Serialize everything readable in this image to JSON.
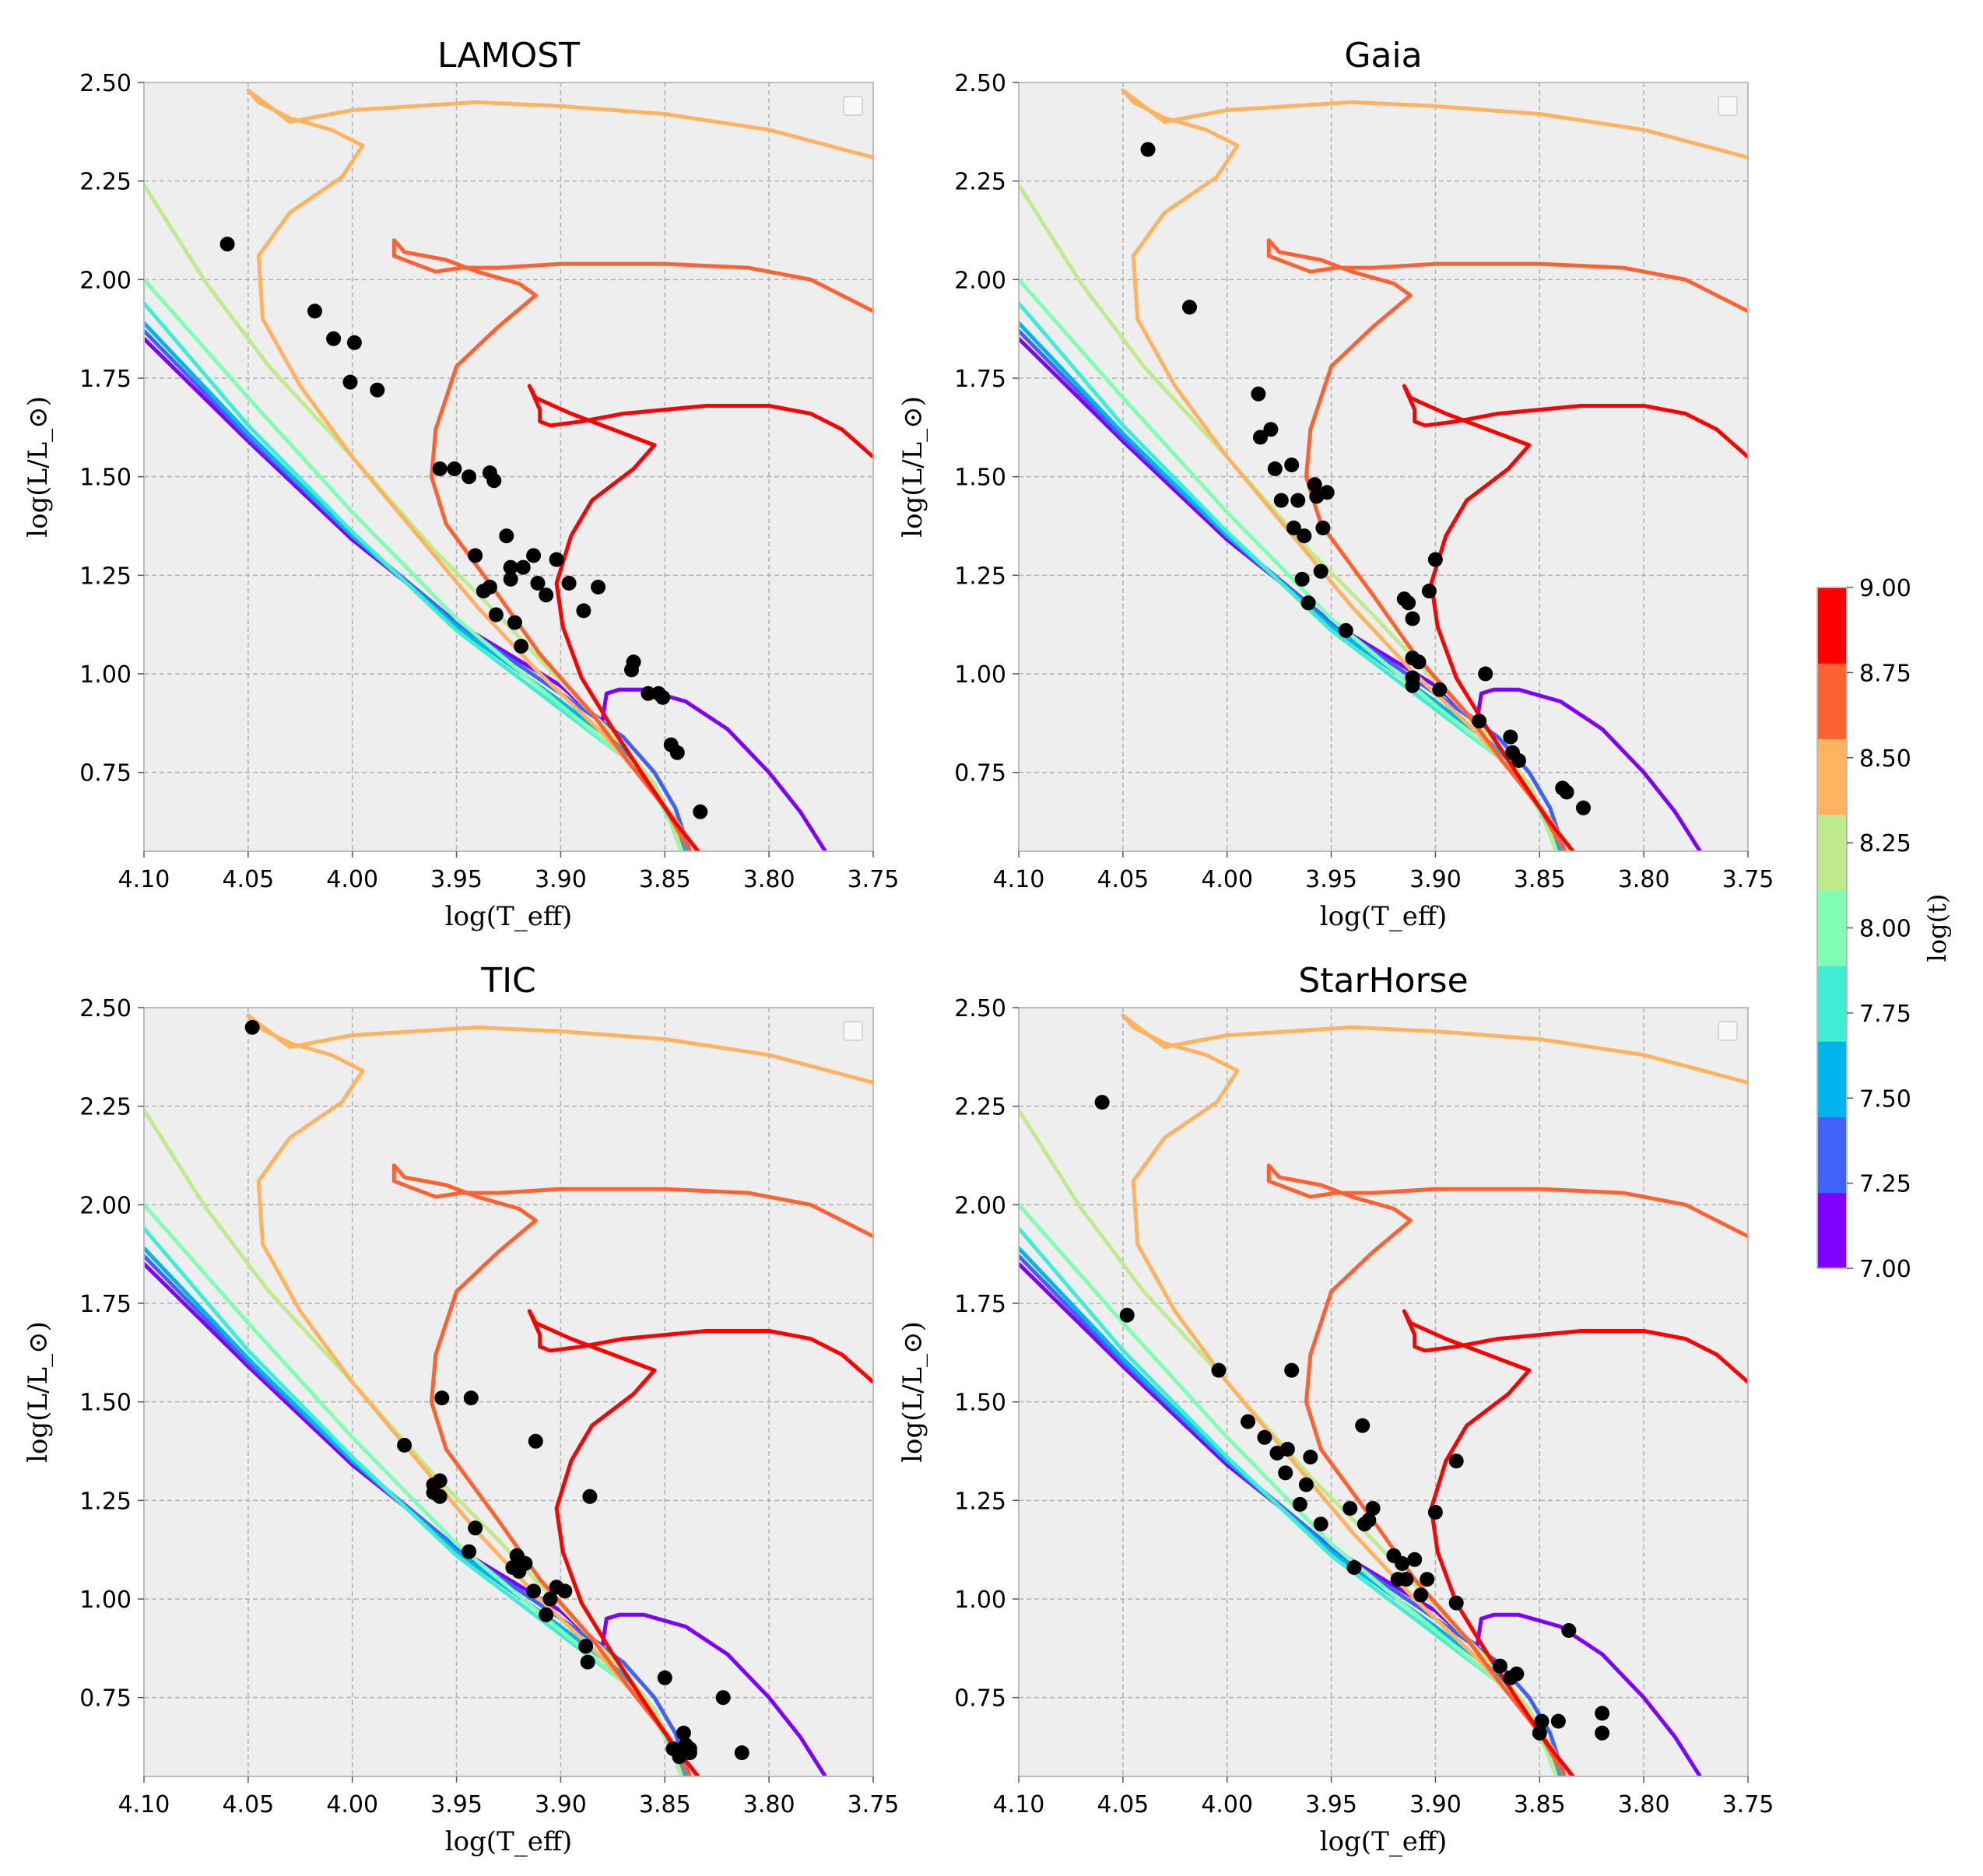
{
  "chart_data": {
    "type": "scatter",
    "description_axes": {
      "xlabel": "log(T_eff)",
      "ylabel": "log(L/L_⊙)",
      "xlim": [
        4.1,
        3.75
      ],
      "ylim": [
        0.55,
        2.5
      ],
      "xticks": [
        "4.10",
        "4.05",
        "4.00",
        "3.95",
        "3.90",
        "3.85",
        "3.80",
        "3.75"
      ],
      "yticks": [
        "0.75",
        "1.00",
        "1.25",
        "1.50",
        "1.75",
        "2.00",
        "2.25",
        "2.50"
      ],
      "grid": true
    },
    "colorbar": {
      "label": "log(t)",
      "ticks": [
        "7.00",
        "7.25",
        "7.50",
        "7.75",
        "8.00",
        "8.25",
        "8.50",
        "8.75",
        "9.00"
      ],
      "colors": [
        "#8000ff",
        "#4062fa",
        "#00b5eb",
        "#40ecd4",
        "#80ffb4",
        "#c0eb8d",
        "#ffb360",
        "#ff6230",
        "#ff0000"
      ]
    },
    "isochrones": [
      {
        "logt": 7.0,
        "color": "#8000ff",
        "points": [
          [
            4.1,
            1.85
          ],
          [
            4.05,
            1.59
          ],
          [
            4.0,
            1.34
          ],
          [
            3.95,
            1.13
          ],
          [
            3.9,
            0.97
          ],
          [
            3.885,
            0.9
          ],
          [
            3.88,
            0.88
          ],
          [
            3.878,
            0.95
          ],
          [
            3.872,
            0.96
          ],
          [
            3.86,
            0.96
          ],
          [
            3.84,
            0.93
          ],
          [
            3.82,
            0.86
          ],
          [
            3.8,
            0.75
          ],
          [
            3.785,
            0.65
          ],
          [
            3.773,
            0.55
          ]
        ]
      },
      {
        "logt": 7.25,
        "color": "#4062fa",
        "points": [
          [
            4.1,
            1.87
          ],
          [
            4.05,
            1.6
          ],
          [
            4.0,
            1.35
          ],
          [
            3.95,
            1.13
          ],
          [
            3.9,
            0.95
          ],
          [
            3.87,
            0.84
          ],
          [
            3.855,
            0.75
          ],
          [
            3.845,
            0.66
          ],
          [
            3.838,
            0.55
          ]
        ]
      },
      {
        "logt": 7.5,
        "color": "#00b5eb",
        "points": [
          [
            4.1,
            1.89
          ],
          [
            4.05,
            1.61
          ],
          [
            4.0,
            1.35
          ],
          [
            3.95,
            1.12
          ],
          [
            3.9,
            0.93
          ],
          [
            3.87,
            0.81
          ],
          [
            3.855,
            0.72
          ],
          [
            3.847,
            0.63
          ],
          [
            3.84,
            0.55
          ]
        ]
      },
      {
        "logt": 7.75,
        "color": "#40ecd4",
        "points": [
          [
            4.1,
            1.94
          ],
          [
            4.05,
            1.63
          ],
          [
            4.0,
            1.36
          ],
          [
            3.95,
            1.11
          ],
          [
            3.9,
            0.91
          ],
          [
            3.87,
            0.79
          ],
          [
            3.855,
            0.7
          ],
          [
            3.847,
            0.62
          ],
          [
            3.842,
            0.55
          ]
        ]
      },
      {
        "logt": 8.0,
        "color": "#80ffb4",
        "points": [
          [
            4.1,
            2.0
          ],
          [
            4.05,
            1.7
          ],
          [
            4.0,
            1.41
          ],
          [
            3.95,
            1.14
          ],
          [
            3.9,
            0.92
          ],
          [
            3.87,
            0.79
          ],
          [
            3.855,
            0.7
          ],
          [
            3.847,
            0.62
          ],
          [
            3.842,
            0.55
          ]
        ]
      },
      {
        "logt": 8.25,
        "color": "#c0eb8d",
        "points": [
          [
            4.1,
            2.24
          ],
          [
            4.07,
            1.99
          ],
          [
            4.04,
            1.78
          ],
          [
            4.0,
            1.55
          ],
          [
            3.96,
            1.31
          ],
          [
            3.93,
            1.15
          ],
          [
            3.9,
            0.98
          ],
          [
            3.87,
            0.82
          ],
          [
            3.855,
            0.72
          ],
          [
            3.847,
            0.63
          ],
          [
            3.842,
            0.55
          ]
        ]
      },
      {
        "logt": 8.5,
        "color": "#ffb360",
        "points": [
          [
            3.75,
            2.31
          ],
          [
            3.8,
            2.38
          ],
          [
            3.85,
            2.42
          ],
          [
            3.9,
            2.44
          ],
          [
            3.94,
            2.45
          ],
          [
            3.97,
            2.44
          ],
          [
            4.0,
            2.43
          ],
          [
            4.02,
            2.41
          ],
          [
            4.03,
            2.4
          ],
          [
            4.05,
            2.48
          ],
          [
            4.045,
            2.45
          ],
          [
            4.03,
            2.41
          ],
          [
            4.01,
            2.38
          ],
          [
            3.995,
            2.34
          ],
          [
            4.005,
            2.26
          ],
          [
            4.03,
            2.17
          ],
          [
            4.045,
            2.06
          ],
          [
            4.043,
            1.9
          ],
          [
            4.025,
            1.73
          ],
          [
            4.0,
            1.55
          ],
          [
            3.97,
            1.36
          ],
          [
            3.94,
            1.17
          ],
          [
            3.91,
            1.0
          ],
          [
            3.88,
            0.85
          ],
          [
            3.86,
            0.73
          ],
          [
            3.845,
            0.63
          ],
          [
            3.835,
            0.55
          ]
        ]
      },
      {
        "logt": 8.75,
        "color": "#ff6230",
        "points": [
          [
            3.75,
            1.92
          ],
          [
            3.78,
            2.0
          ],
          [
            3.81,
            2.03
          ],
          [
            3.85,
            2.04
          ],
          [
            3.9,
            2.04
          ],
          [
            3.93,
            2.03
          ],
          [
            3.948,
            2.03
          ],
          [
            3.96,
            2.02
          ],
          [
            3.98,
            2.06
          ],
          [
            3.98,
            2.1
          ],
          [
            3.975,
            2.07
          ],
          [
            3.955,
            2.05
          ],
          [
            3.94,
            2.02
          ],
          [
            3.92,
            1.99
          ],
          [
            3.912,
            1.96
          ],
          [
            3.93,
            1.88
          ],
          [
            3.95,
            1.78
          ],
          [
            3.96,
            1.62
          ],
          [
            3.962,
            1.5
          ],
          [
            3.955,
            1.38
          ],
          [
            3.93,
            1.2
          ],
          [
            3.91,
            1.05
          ],
          [
            3.885,
            0.9
          ],
          [
            3.865,
            0.76
          ],
          [
            3.85,
            0.66
          ],
          [
            3.838,
            0.55
          ]
        ]
      },
      {
        "logt": 9.0,
        "color": "#ff0000",
        "points": [
          [
            3.75,
            1.55
          ],
          [
            3.765,
            1.62
          ],
          [
            3.78,
            1.66
          ],
          [
            3.8,
            1.68
          ],
          [
            3.83,
            1.68
          ],
          [
            3.87,
            1.66
          ],
          [
            3.89,
            1.64
          ],
          [
            3.905,
            1.63
          ],
          [
            3.91,
            1.64
          ],
          [
            3.91,
            1.67
          ],
          [
            3.915,
            1.73
          ],
          [
            3.912,
            1.7
          ],
          [
            3.895,
            1.66
          ],
          [
            3.875,
            1.62
          ],
          [
            3.855,
            1.58
          ],
          [
            3.865,
            1.52
          ],
          [
            3.885,
            1.44
          ],
          [
            3.895,
            1.35
          ],
          [
            3.902,
            1.23
          ],
          [
            3.899,
            1.12
          ],
          [
            3.89,
            0.99
          ],
          [
            3.875,
            0.86
          ],
          [
            3.86,
            0.74
          ],
          [
            3.846,
            0.63
          ],
          [
            3.834,
            0.55
          ]
        ]
      }
    ],
    "panels": [
      {
        "title": "LAMOST",
        "points": [
          [
            4.06,
            2.09
          ],
          [
            4.018,
            1.92
          ],
          [
            4.009,
            1.85
          ],
          [
            4.001,
            1.74
          ],
          [
            3.999,
            1.84
          ],
          [
            3.988,
            1.72
          ],
          [
            3.958,
            1.52
          ],
          [
            3.951,
            1.52
          ],
          [
            3.944,
            1.5
          ],
          [
            3.934,
            1.51
          ],
          [
            3.932,
            1.49
          ],
          [
            3.926,
            1.35
          ],
          [
            3.941,
            1.3
          ],
          [
            3.937,
            1.21
          ],
          [
            3.934,
            1.22
          ],
          [
            3.931,
            1.15
          ],
          [
            3.924,
            1.27
          ],
          [
            3.924,
            1.24
          ],
          [
            3.922,
            1.13
          ],
          [
            3.919,
            1.07
          ],
          [
            3.918,
            1.27
          ],
          [
            3.913,
            1.3
          ],
          [
            3.911,
            1.23
          ],
          [
            3.907,
            1.2
          ],
          [
            3.902,
            1.29
          ],
          [
            3.896,
            1.23
          ],
          [
            3.889,
            1.16
          ],
          [
            3.882,
            1.22
          ],
          [
            3.866,
            1.01
          ],
          [
            3.865,
            1.03
          ],
          [
            3.858,
            0.95
          ],
          [
            3.853,
            0.95
          ],
          [
            3.851,
            0.94
          ],
          [
            3.847,
            0.82
          ],
          [
            3.844,
            0.8
          ],
          [
            3.833,
            0.65
          ]
        ]
      },
      {
        "title": "Gaia",
        "points": [
          [
            4.038,
            2.33
          ],
          [
            4.018,
            1.93
          ],
          [
            3.985,
            1.71
          ],
          [
            3.984,
            1.6
          ],
          [
            3.979,
            1.62
          ],
          [
            3.977,
            1.52
          ],
          [
            3.974,
            1.44
          ],
          [
            3.969,
            1.53
          ],
          [
            3.968,
            1.37
          ],
          [
            3.966,
            1.44
          ],
          [
            3.964,
            1.24
          ],
          [
            3.963,
            1.35
          ],
          [
            3.961,
            1.18
          ],
          [
            3.958,
            1.48
          ],
          [
            3.957,
            1.45
          ],
          [
            3.955,
            1.26
          ],
          [
            3.954,
            1.37
          ],
          [
            3.952,
            1.46
          ],
          [
            3.943,
            1.11
          ],
          [
            3.915,
            1.19
          ],
          [
            3.913,
            1.18
          ],
          [
            3.911,
            1.14
          ],
          [
            3.911,
            1.04
          ],
          [
            3.911,
            0.99
          ],
          [
            3.911,
            0.97
          ],
          [
            3.908,
            1.03
          ],
          [
            3.903,
            1.21
          ],
          [
            3.9,
            1.29
          ],
          [
            3.898,
            0.96
          ],
          [
            3.879,
            0.88
          ],
          [
            3.876,
            1.0
          ],
          [
            3.864,
            0.84
          ],
          [
            3.863,
            0.8
          ],
          [
            3.86,
            0.78
          ],
          [
            3.839,
            0.71
          ],
          [
            3.837,
            0.7
          ],
          [
            3.829,
            0.66
          ]
        ]
      },
      {
        "title": "TIC",
        "points": [
          [
            4.048,
            2.45
          ],
          [
            3.975,
            1.39
          ],
          [
            3.961,
            1.29
          ],
          [
            3.961,
            1.27
          ],
          [
            3.958,
            1.3
          ],
          [
            3.958,
            1.26
          ],
          [
            3.957,
            1.51
          ],
          [
            3.943,
            1.51
          ],
          [
            3.944,
            1.12
          ],
          [
            3.941,
            1.18
          ],
          [
            3.923,
            1.08
          ],
          [
            3.921,
            1.11
          ],
          [
            3.92,
            1.07
          ],
          [
            3.917,
            1.09
          ],
          [
            3.913,
            1.02
          ],
          [
            3.912,
            1.4
          ],
          [
            3.907,
            0.96
          ],
          [
            3.905,
            1.0
          ],
          [
            3.902,
            1.03
          ],
          [
            3.898,
            1.02
          ],
          [
            3.888,
            0.88
          ],
          [
            3.887,
            0.84
          ],
          [
            3.886,
            1.26
          ],
          [
            3.85,
            0.8
          ],
          [
            3.846,
            0.62
          ],
          [
            3.843,
            0.6
          ],
          [
            3.841,
            0.66
          ],
          [
            3.84,
            0.63
          ],
          [
            3.838,
            0.62
          ],
          [
            3.838,
            0.61
          ],
          [
            3.822,
            0.75
          ],
          [
            3.813,
            0.61
          ]
        ]
      },
      {
        "title": "StarHorse",
        "points": [
          [
            4.06,
            2.26
          ],
          [
            4.048,
            1.72
          ],
          [
            4.004,
            1.58
          ],
          [
            3.99,
            1.45
          ],
          [
            3.982,
            1.41
          ],
          [
            3.976,
            1.37
          ],
          [
            3.972,
            1.32
          ],
          [
            3.971,
            1.38
          ],
          [
            3.969,
            1.58
          ],
          [
            3.965,
            1.24
          ],
          [
            3.962,
            1.29
          ],
          [
            3.96,
            1.36
          ],
          [
            3.955,
            1.19
          ],
          [
            3.941,
            1.23
          ],
          [
            3.939,
            1.08
          ],
          [
            3.935,
            1.44
          ],
          [
            3.934,
            1.19
          ],
          [
            3.932,
            1.2
          ],
          [
            3.93,
            1.23
          ],
          [
            3.92,
            1.11
          ],
          [
            3.918,
            1.05
          ],
          [
            3.916,
            1.09
          ],
          [
            3.914,
            1.05
          ],
          [
            3.91,
            1.1
          ],
          [
            3.907,
            1.01
          ],
          [
            3.904,
            1.05
          ],
          [
            3.9,
            1.22
          ],
          [
            3.89,
            1.35
          ],
          [
            3.89,
            0.99
          ],
          [
            3.869,
            0.83
          ],
          [
            3.864,
            0.8
          ],
          [
            3.861,
            0.81
          ],
          [
            3.85,
            0.66
          ],
          [
            3.849,
            0.69
          ],
          [
            3.841,
            0.69
          ],
          [
            3.836,
            0.92
          ],
          [
            3.82,
            0.71
          ],
          [
            3.82,
            0.66
          ]
        ]
      }
    ]
  }
}
